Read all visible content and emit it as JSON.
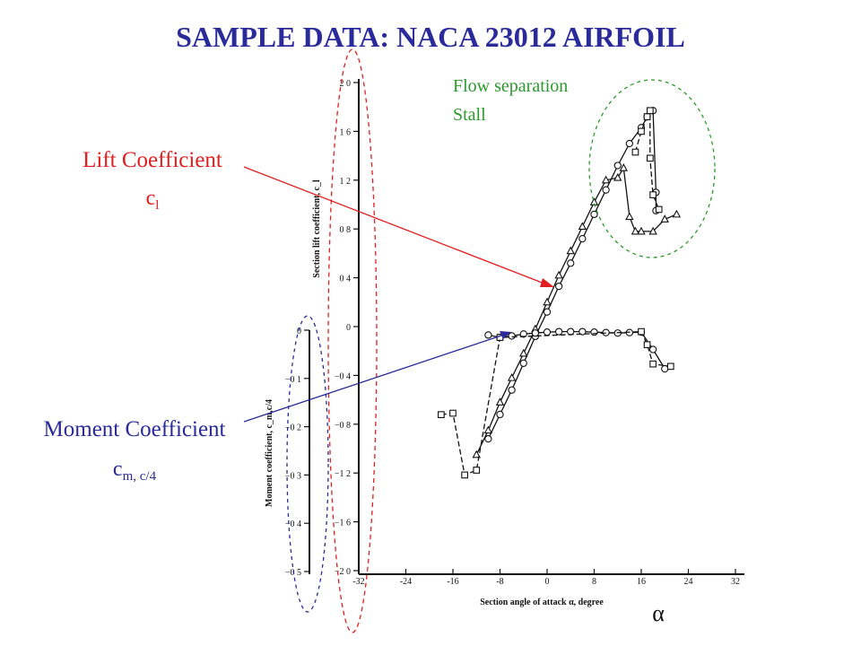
{
  "slide": {
    "title": "SAMPLE DATA: NACA 23012 AIRFOIL",
    "title_color": "#2a2a9a"
  },
  "annotations": {
    "lift_label": "Lift Coefficient",
    "lift_symbol": "c",
    "lift_subscript": "l",
    "lift_color": "#e02020",
    "moment_label": "Moment Coefficient",
    "moment_symbol": "c",
    "moment_subscript": "m, c/4",
    "moment_color": "#2a2a9a",
    "stall_line1": "Flow separation",
    "stall_line2": "Stall",
    "stall_color": "#2a9a2a",
    "alpha_symbol": "α"
  },
  "chart_data": {
    "type": "line",
    "xlabel": "Section angle of attack α, degree",
    "x_ticks": [
      "-32",
      "-24",
      "-16",
      "-8",
      "0",
      "8",
      "16",
      "24",
      "32"
    ],
    "xlim": [
      -32,
      32
    ],
    "lift_axis": {
      "label": "Section lift coefficient, c_l",
      "ylim": [
        -2.0,
        2.0
      ],
      "ticks": [
        "2 0",
        "1 6",
        "1 2",
        "0 8",
        "0 4",
        "0",
        "−0 4",
        "−0 8",
        "−1 2",
        "−1 6",
        "−2 0"
      ]
    },
    "moment_axis": {
      "label": "Moment coefficient, c_m,c/4",
      "ylim": [
        -0.5,
        0
      ],
      "ticks": [
        "0",
        "−0 1",
        "−0 2",
        "−0 3",
        "−0 4",
        "−0 5"
      ]
    },
    "series": [
      {
        "axis": "lift",
        "marker": "circle",
        "dash": false,
        "x": [
          -10,
          -8,
          -6,
          -4,
          -2,
          0,
          2,
          4,
          6,
          8,
          10,
          12,
          14,
          16,
          17,
          18,
          18.5,
          18.5
        ],
        "y": [
          -0.92,
          -0.72,
          -0.52,
          -0.3,
          -0.08,
          0.12,
          0.33,
          0.52,
          0.72,
          0.92,
          1.12,
          1.32,
          1.5,
          1.63,
          1.72,
          1.77,
          1.1,
          0.95
        ]
      },
      {
        "axis": "lift",
        "marker": "triangle",
        "dash": false,
        "x": [
          -12,
          -10,
          -8,
          -6,
          -4,
          -2,
          0,
          2,
          4,
          6,
          8,
          10,
          12,
          13,
          14,
          15,
          16,
          18,
          20,
          22
        ],
        "y": [
          -1.05,
          -0.85,
          -0.62,
          -0.42,
          -0.22,
          -0.02,
          0.2,
          0.42,
          0.62,
          0.82,
          1.02,
          1.2,
          1.22,
          1.3,
          0.9,
          0.78,
          0.78,
          0.78,
          0.88,
          0.92
        ]
      },
      {
        "axis": "lift",
        "marker": "square",
        "dash": true,
        "x": [
          15,
          16,
          17,
          17.5,
          17.5,
          18,
          19
        ],
        "y": [
          1.43,
          1.6,
          1.72,
          1.77,
          1.38,
          1.08,
          0.96
        ]
      },
      {
        "axis": "moment",
        "marker": "circle",
        "dash": false,
        "x": [
          -10,
          -8,
          -6,
          -4,
          -2,
          0,
          2,
          4,
          6,
          8,
          10,
          12,
          14,
          16,
          18,
          20
        ],
        "y": [
          -0.01,
          -0.015,
          -0.012,
          -0.008,
          -0.006,
          -0.004,
          -0.003,
          -0.003,
          -0.003,
          -0.004,
          -0.005,
          -0.006,
          -0.005,
          -0.004,
          -0.04,
          -0.08
        ]
      },
      {
        "axis": "moment",
        "marker": "square",
        "dash": true,
        "x": [
          -18,
          -16,
          -14,
          -12,
          -8,
          16,
          17,
          18,
          21
        ],
        "y": [
          -0.175,
          -0.172,
          -0.3,
          -0.29,
          -0.015,
          -0.003,
          -0.03,
          -0.07,
          -0.075
        ]
      }
    ],
    "grid": false
  }
}
